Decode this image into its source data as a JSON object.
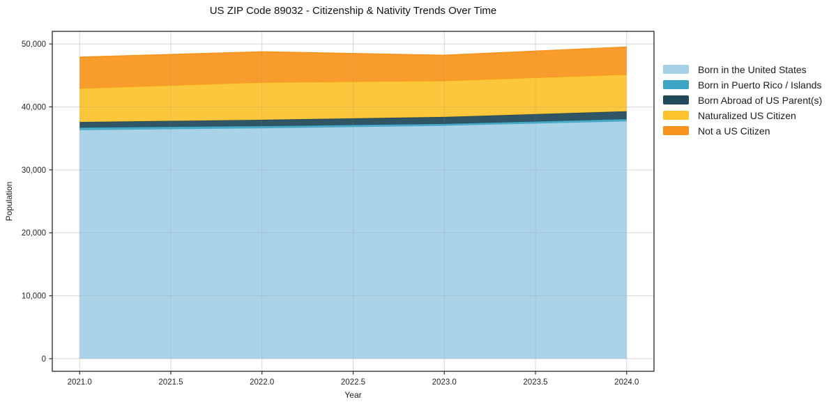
{
  "chart_data": {
    "type": "area",
    "stacked": true,
    "title": "US ZIP Code 89032 - Citizenship & Nativity Trends Over Time",
    "xlabel": "Year",
    "ylabel": "Population",
    "x": [
      2021,
      2022,
      2023,
      2024
    ],
    "series": [
      {
        "name": "Born in the United States",
        "color": "#A5D0E6",
        "values": [
          36300,
          36600,
          37000,
          37700
        ]
      },
      {
        "name": "Born in Puerto Rico / Islands",
        "color": "#3EA4C3",
        "values": [
          400,
          350,
          300,
          350
        ]
      },
      {
        "name": "Born Abroad of US Parent(s)",
        "color": "#20495A",
        "values": [
          900,
          1000,
          1100,
          1250
        ]
      },
      {
        "name": "Naturalized US Citizen",
        "color": "#FCC32D",
        "values": [
          5300,
          5900,
          5700,
          5800
        ]
      },
      {
        "name": "Not a US Citizen",
        "color": "#F7941E",
        "values": [
          5000,
          4900,
          4100,
          4400
        ]
      }
    ],
    "stacked_totals": [
      47900,
      48750,
      48200,
      49500
    ],
    "x_ticks": [
      2021.0,
      2021.5,
      2022.0,
      2022.5,
      2023.0,
      2023.5,
      2024.0
    ],
    "x_tick_labels": [
      "2021.0",
      "2021.5",
      "2022.0",
      "2022.5",
      "2023.0",
      "2023.5",
      "2024.0"
    ],
    "y_ticks": [
      0,
      10000,
      20000,
      30000,
      40000,
      50000
    ],
    "y_tick_labels": [
      "0",
      "10,000",
      "20,000",
      "30,000",
      "40,000",
      "50,000"
    ],
    "xlim": [
      2020.85,
      2024.15
    ],
    "ylim": [
      -2000,
      52000
    ],
    "grid": true,
    "legend_position": "right",
    "spine_color": "#26262b",
    "grid_color": "#ebebf0"
  }
}
